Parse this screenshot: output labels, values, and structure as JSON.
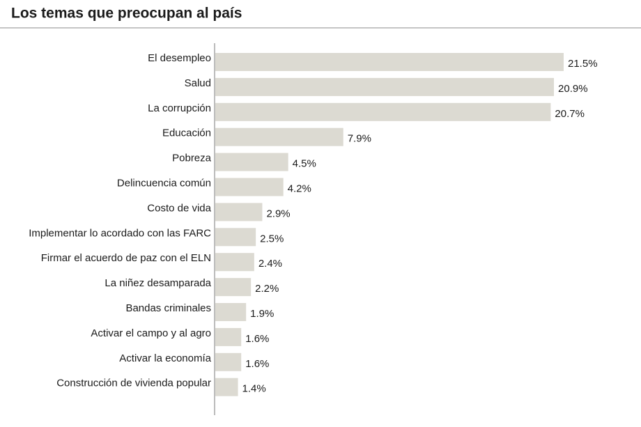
{
  "chart_data": {
    "type": "bar",
    "orientation": "horizontal",
    "title": "Los temas que preocupan al país",
    "categories": [
      "El desempleo",
      "Salud",
      "La corrupción",
      "Educación",
      "Pobreza",
      "Delincuencia común",
      "Costo de vida",
      "Implementar lo acordado con las FARC",
      "Firmar el acuerdo de paz con el ELN",
      "La niñez desamparada",
      "Bandas criminales",
      "Activar el campo y al agro",
      "Activar la economía",
      "Construcción de vivienda popular"
    ],
    "values": [
      21.5,
      20.9,
      20.7,
      7.9,
      4.5,
      4.2,
      2.9,
      2.5,
      2.4,
      2.2,
      1.9,
      1.6,
      1.6,
      1.4
    ],
    "value_labels": [
      "21.5%",
      "20.9%",
      "20.7%",
      "7.9%",
      "4.5%",
      "4.2%",
      "2.9%",
      "2.5%",
      "2.4%",
      "2.2%",
      "1.9%",
      "1.6%",
      "1.6%",
      "1.4%"
    ],
    "color": "#dcdad2",
    "xlim": [
      0,
      21.5
    ]
  }
}
